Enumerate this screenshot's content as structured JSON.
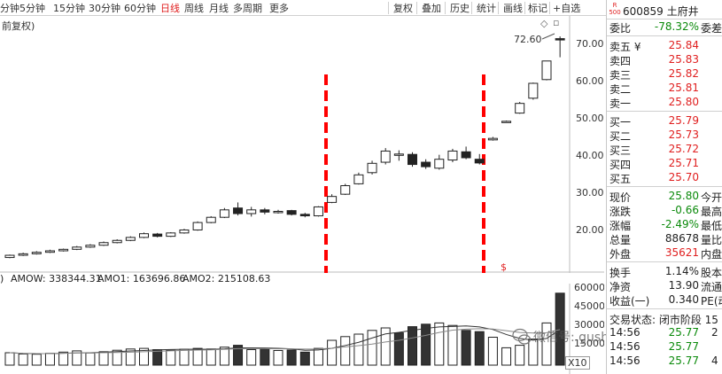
{
  "toolbar": {
    "periods": [
      "分钟",
      "5分钟",
      "15分钟",
      "30分钟",
      "60分钟",
      "日线",
      "周线",
      "月线",
      "多周期",
      "更多"
    ],
    "active_period": "日线",
    "tools": [
      "复权",
      "叠加",
      "历史",
      "统计",
      "画线",
      "标记",
      "+自选"
    ]
  },
  "chart": {
    "adjust_label": "前复权)",
    "high_label": "72.60",
    "price_axis": [
      "70.00",
      "60.00",
      "50.00",
      "40.00",
      "30.00",
      "20.00"
    ],
    "dollar_marker": "$",
    "colors": {
      "marker_line": "#ff0000",
      "candle_up": "#222222",
      "candle_down": "#222222"
    }
  },
  "indicator": {
    "prefix": ")",
    "amow": "AMOW: 338344.31",
    "amo1": "AMO1: 163696.86",
    "amo2": "AMO2: 215108.63",
    "axis": [
      "60000",
      "45000",
      "30000",
      "15000"
    ],
    "multiplier": "X10"
  },
  "quote": {
    "r_badge": "R\n500",
    "code_name": "600859 土府井",
    "weibi_label": "委比",
    "weibi_value": "-78.32%",
    "weicha_label": "委差",
    "asks": [
      {
        "label": "卖五 ¥",
        "price": "25.84"
      },
      {
        "label": "卖四",
        "price": "25.83"
      },
      {
        "label": "卖三",
        "price": "25.82"
      },
      {
        "label": "卖二",
        "price": "25.81"
      },
      {
        "label": "卖一",
        "price": "25.80"
      }
    ],
    "bids": [
      {
        "label": "买一",
        "price": "25.79"
      },
      {
        "label": "买二",
        "price": "25.73"
      },
      {
        "label": "买三",
        "price": "25.72"
      },
      {
        "label": "买四",
        "price": "25.71"
      },
      {
        "label": "买五",
        "price": "25.70"
      }
    ],
    "stats": [
      {
        "label": "现价",
        "value": "25.80",
        "label2": "今开",
        "color": "green"
      },
      {
        "label": "涨跌",
        "value": "-0.66",
        "label2": "最高",
        "color": "green"
      },
      {
        "label": "涨幅",
        "value": "-2.49%",
        "label2": "最低",
        "color": "green"
      },
      {
        "label": "总量",
        "value": "88678",
        "label2": "量比",
        "color": "dark"
      },
      {
        "label": "外盘",
        "value": "35621",
        "label2": "内盘",
        "color": "red"
      }
    ],
    "extra": [
      {
        "label": "换手",
        "value": "1.14%",
        "label2": "股本"
      },
      {
        "label": "净资",
        "value": "13.90",
        "label2": "流通"
      },
      {
        "label": "收益(一)",
        "value": "0.340",
        "label2": "PE(动"
      }
    ],
    "trade_status": "交易状态: 闭市阶段 15",
    "ticks": [
      {
        "time": "14:56",
        "price": "25.77",
        "vol": "2"
      },
      {
        "time": "14:56",
        "price": "25.77",
        "vol": ""
      },
      {
        "time": "14:56",
        "price": "25.77",
        "vol": "4"
      }
    ]
  },
  "watermark": {
    "text": "微信号: gushiluoji"
  },
  "candles": [
    {
      "o": 13.2,
      "c": 13.8,
      "h": 14.0,
      "l": 13.0
    },
    {
      "o": 13.8,
      "c": 14.2,
      "h": 14.5,
      "l": 13.6
    },
    {
      "o": 14.2,
      "c": 14.6,
      "h": 14.9,
      "l": 14.0
    },
    {
      "o": 14.6,
      "c": 15.0,
      "h": 15.3,
      "l": 14.4
    },
    {
      "o": 15.0,
      "c": 15.4,
      "h": 15.6,
      "l": 14.8
    },
    {
      "o": 15.4,
      "c": 16.0,
      "h": 16.3,
      "l": 15.2
    },
    {
      "o": 16.0,
      "c": 16.5,
      "h": 16.8,
      "l": 15.8
    },
    {
      "o": 16.5,
      "c": 17.2,
      "h": 17.5,
      "l": 16.3
    },
    {
      "o": 17.2,
      "c": 17.8,
      "h": 18.1,
      "l": 17.0
    },
    {
      "o": 17.8,
      "c": 18.6,
      "h": 18.9,
      "l": 17.6
    },
    {
      "o": 18.6,
      "c": 19.6,
      "h": 19.9,
      "l": 18.4
    },
    {
      "o": 19.5,
      "c": 18.9,
      "h": 19.8,
      "l": 18.6
    },
    {
      "o": 18.9,
      "c": 19.8,
      "h": 20.0,
      "l": 18.7
    },
    {
      "o": 19.8,
      "c": 20.6,
      "h": 20.9,
      "l": 19.6
    },
    {
      "o": 20.6,
      "c": 22.6,
      "h": 22.9,
      "l": 20.4
    },
    {
      "o": 22.6,
      "c": 24.0,
      "h": 24.3,
      "l": 22.4
    },
    {
      "o": 24.0,
      "c": 26.0,
      "h": 26.5,
      "l": 23.8
    },
    {
      "o": 26.5,
      "c": 25.0,
      "h": 28.0,
      "l": 24.5
    },
    {
      "o": 25.0,
      "c": 26.0,
      "h": 26.8,
      "l": 24.2
    },
    {
      "o": 26.0,
      "c": 25.4,
      "h": 26.5,
      "l": 24.8
    },
    {
      "o": 25.4,
      "c": 25.6,
      "h": 26.0,
      "l": 25.0
    },
    {
      "o": 25.8,
      "c": 24.8,
      "h": 26.0,
      "l": 24.5
    },
    {
      "o": 24.8,
      "c": 24.4,
      "h": 25.2,
      "l": 24.0
    },
    {
      "o": 24.4,
      "c": 26.8,
      "h": 27.0,
      "l": 24.2
    },
    {
      "o": 28.0,
      "c": 29.6,
      "h": 30.2,
      "l": 27.8
    },
    {
      "o": 30.2,
      "c": 32.5,
      "h": 33.0,
      "l": 30.0
    },
    {
      "o": 33.0,
      "c": 35.4,
      "h": 36.0,
      "l": 32.8
    },
    {
      "o": 36.0,
      "c": 38.5,
      "h": 39.2,
      "l": 35.5
    },
    {
      "o": 38.8,
      "c": 41.8,
      "h": 42.6,
      "l": 38.2
    },
    {
      "o": 41.0,
      "c": 41.0,
      "h": 42.0,
      "l": 39.2
    },
    {
      "o": 40.9,
      "c": 38.2,
      "h": 41.5,
      "l": 37.6
    },
    {
      "o": 38.8,
      "c": 37.6,
      "h": 39.6,
      "l": 37.0
    },
    {
      "o": 37.2,
      "c": 39.6,
      "h": 40.8,
      "l": 36.8
    },
    {
      "o": 39.4,
      "c": 41.8,
      "h": 42.4,
      "l": 38.8
    },
    {
      "o": 41.6,
      "c": 40.0,
      "h": 43.0,
      "l": 39.6
    },
    {
      "o": 39.6,
      "c": 38.6,
      "h": 41.0,
      "l": 38.2
    },
    {
      "o": 44.8,
      "c": 45.2,
      "h": 45.6,
      "l": 44.6
    },
    {
      "o": 49.6,
      "c": 49.8,
      "h": 50.0,
      "l": 49.4
    },
    {
      "o": 52.0,
      "c": 54.6,
      "h": 55.0,
      "l": 51.8
    },
    {
      "o": 56.0,
      "c": 60.0,
      "h": 60.2,
      "l": 55.6
    },
    {
      "o": 61.0,
      "c": 66.0,
      "h": 66.0,
      "l": 60.8
    },
    {
      "o": 72.0,
      "c": 71.8,
      "h": 72.6,
      "l": 67.0
    }
  ],
  "volume": [
    10000,
    9000,
    8800,
    9500,
    10500,
    11500,
    9800,
    10800,
    12000,
    13000,
    13500,
    12500,
    12000,
    12800,
    13500,
    13000,
    14500,
    16000,
    12500,
    13000,
    11800,
    12200,
    10500,
    13500,
    20000,
    23000,
    25000,
    28000,
    30000,
    26000,
    31000,
    33000,
    34000,
    32000,
    28000,
    27000,
    22500,
    14000,
    16000,
    21000,
    34000,
    58000
  ],
  "volume_dark": [
    false,
    false,
    false,
    false,
    false,
    false,
    false,
    false,
    false,
    false,
    false,
    true,
    false,
    false,
    false,
    false,
    false,
    true,
    false,
    true,
    false,
    true,
    true,
    false,
    false,
    false,
    false,
    false,
    false,
    true,
    true,
    true,
    false,
    false,
    true,
    true,
    false,
    false,
    false,
    false,
    false,
    true
  ]
}
